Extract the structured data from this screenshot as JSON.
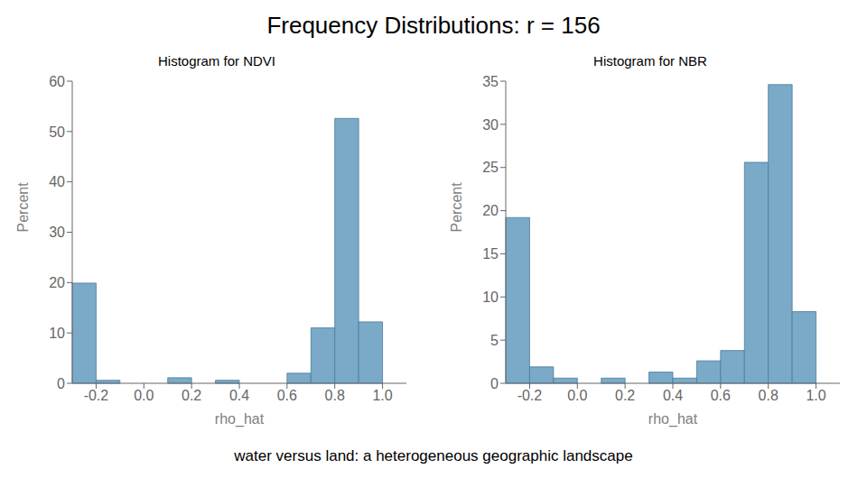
{
  "title": "Frequency Distributions: r = 156",
  "subtitle": "water versus land: a heterogeneous geographic landscape",
  "chart_data": [
    {
      "type": "histogram",
      "title": "Histogram for NDVI",
      "xlabel": "rho_hat",
      "ylabel": "Percent",
      "bins": [
        -0.3,
        -0.2,
        -0.1,
        0.0,
        0.1,
        0.2,
        0.3,
        0.4,
        0.5,
        0.6,
        0.7,
        0.8,
        0.9,
        1.0,
        1.1
      ],
      "values": [
        19.9,
        0.6,
        0.0,
        0.0,
        1.1,
        0.0,
        0.6,
        0.0,
        0.0,
        2.0,
        11.0,
        52.6,
        12.2,
        0.0
      ],
      "color": "#7aaac8",
      "xlim": [
        -0.3,
        1.1
      ],
      "xticks": [
        -0.2,
        {
          "value": 0,
          "label": "0.0"
        },
        0.2,
        0.4,
        0.6,
        0.8,
        {
          "value": 1,
          "label": "1.0"
        }
      ],
      "ylim": [
        0,
        60
      ],
      "yticks": [
        0,
        10,
        20,
        30,
        40,
        50,
        60
      ],
      "grid": false
    },
    {
      "type": "histogram",
      "title": "Histogram for NBR",
      "xlabel": "rho_hat",
      "ylabel": "Percent",
      "bins": [
        -0.3,
        -0.2,
        -0.1,
        0.0,
        0.1,
        0.2,
        0.3,
        0.4,
        0.5,
        0.6,
        0.7,
        0.8,
        0.9,
        1.0,
        1.1
      ],
      "values": [
        19.2,
        1.9,
        0.6,
        0.0,
        0.6,
        0.0,
        1.3,
        0.6,
        2.6,
        3.8,
        25.6,
        34.6,
        8.3,
        0.0
      ],
      "color": "#7aaac8",
      "xlim": [
        -0.3,
        1.1
      ],
      "xticks": [
        -0.2,
        {
          "value": 0,
          "label": "0.0"
        },
        0.2,
        0.4,
        0.6,
        0.8,
        {
          "value": 1,
          "label": "1.0"
        }
      ],
      "ylim": [
        0,
        35
      ],
      "yticks": [
        0,
        5,
        10,
        15,
        20,
        25,
        30,
        35
      ],
      "grid": false
    }
  ]
}
